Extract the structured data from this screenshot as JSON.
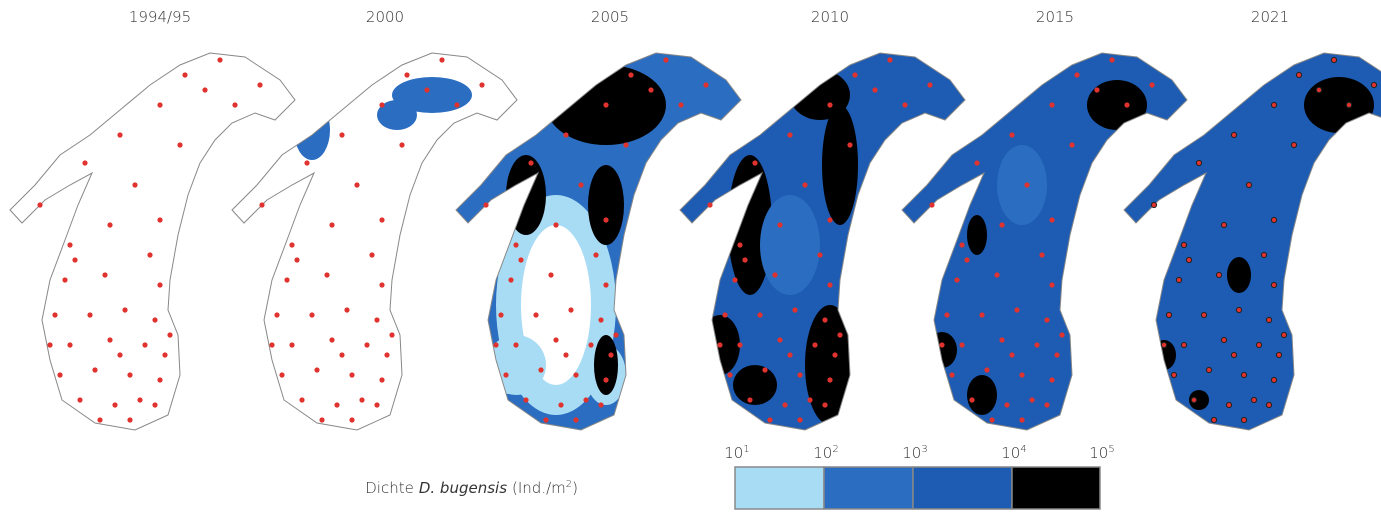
{
  "panels": [
    {
      "label": "1994/95"
    },
    {
      "label": "2000"
    },
    {
      "label": "2005"
    },
    {
      "label": "2010"
    },
    {
      "label": "2015"
    },
    {
      "label": "2021"
    }
  ],
  "legend": {
    "title_prefix": "Dichte",
    "title_species": "D. bugensis",
    "title_unit": "(Ind./m",
    "title_exp": "2",
    "title_suffix": ")",
    "ticks": [
      {
        "base": "10",
        "exp": "1"
      },
      {
        "base": "10",
        "exp": "2"
      },
      {
        "base": "10",
        "exp": "3"
      },
      {
        "base": "10",
        "exp": "4"
      },
      {
        "base": "10",
        "exp": "5"
      }
    ],
    "colors": [
      "#a8dcf4",
      "#2b6dc0",
      "#1d5cb2",
      "#000000"
    ]
  }
}
